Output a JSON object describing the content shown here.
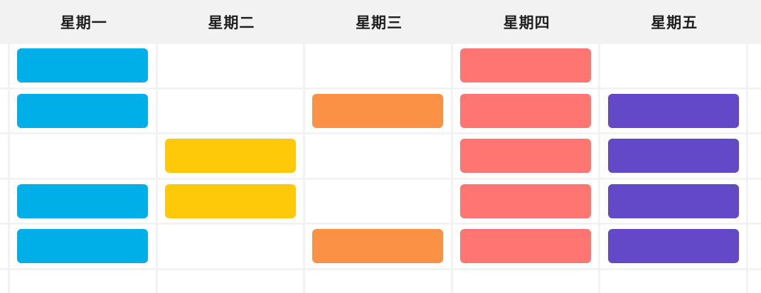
{
  "header": {
    "days": [
      "星期一",
      "星期二",
      "星期三",
      "星期四",
      "星期五"
    ]
  },
  "colors": {
    "header_bg": "#F2F2F2",
    "grid_line": "#F2F2F2",
    "header_text": "#1F1F1F",
    "event_blue": "#00AEE8",
    "event_yellow": "#FDC908",
    "event_orange": "#FB9144",
    "event_red": "#FF7572",
    "event_purple": "#6348C8"
  },
  "schedule": {
    "day_keys": [
      "monday",
      "tuesday",
      "wednesday",
      "thursday",
      "friday"
    ],
    "rows": [
      [
        "blue",
        null,
        null,
        "red",
        null
      ],
      [
        "blue",
        null,
        "orange",
        "red",
        "purple"
      ],
      [
        null,
        "yellow",
        null,
        "red",
        "purple"
      ],
      [
        "blue",
        "yellow",
        null,
        "red",
        "purple"
      ],
      [
        "blue",
        null,
        "orange",
        "red",
        "purple"
      ],
      [
        null,
        null,
        null,
        null,
        null
      ]
    ]
  }
}
